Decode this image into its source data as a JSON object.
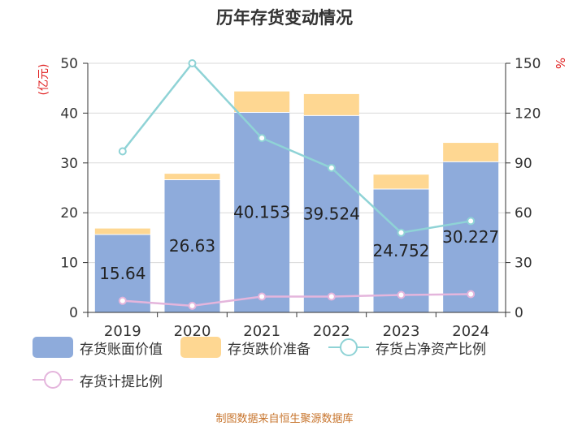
{
  "title": "历年存货变动情况",
  "footer": "制图数据来自恒生聚源数据库",
  "colors": {
    "book_value": "#8eabdb",
    "provision": "#fed792",
    "inventory_ratio": "#8fd3d6",
    "provision_ratio": "#e4b5dc",
    "axis_label": "#e02020",
    "grid": "#d9d9d9",
    "text": "#333333"
  },
  "chart_data": {
    "type": "bar",
    "title": "历年存货变动情况",
    "categories": [
      "2019",
      "2020",
      "2021",
      "2022",
      "2023",
      "2024"
    ],
    "stacked": true,
    "y_left": {
      "label": "(亿元)",
      "lim": [
        0,
        50
      ],
      "ticks": [
        0,
        10,
        20,
        30,
        40,
        50
      ]
    },
    "y_right": {
      "label": "%",
      "lim": [
        0,
        150
      ],
      "ticks": [
        0,
        30,
        60,
        90,
        120,
        150
      ]
    },
    "grid": true,
    "legend_position": "bottom",
    "series": [
      {
        "name": "存货账面价值",
        "type": "bar",
        "axis": "left",
        "values": [
          15.64,
          26.63,
          40.153,
          39.524,
          24.752,
          30.227
        ],
        "data_labels": [
          "15.64",
          "26.63",
          "40.153",
          "39.524",
          "24.752",
          "30.227"
        ]
      },
      {
        "name": "存货跌价准备",
        "type": "bar",
        "axis": "left",
        "values": [
          1.2,
          1.2,
          4.2,
          4.3,
          2.9,
          3.8
        ]
      },
      {
        "name": "存货占净资产比例",
        "type": "line",
        "axis": "right",
        "values": [
          97,
          150,
          105,
          87,
          48,
          55
        ]
      },
      {
        "name": "存货计提比例",
        "type": "line",
        "axis": "right",
        "values": [
          7,
          4,
          9.5,
          9.5,
          10.5,
          11
        ]
      }
    ]
  }
}
